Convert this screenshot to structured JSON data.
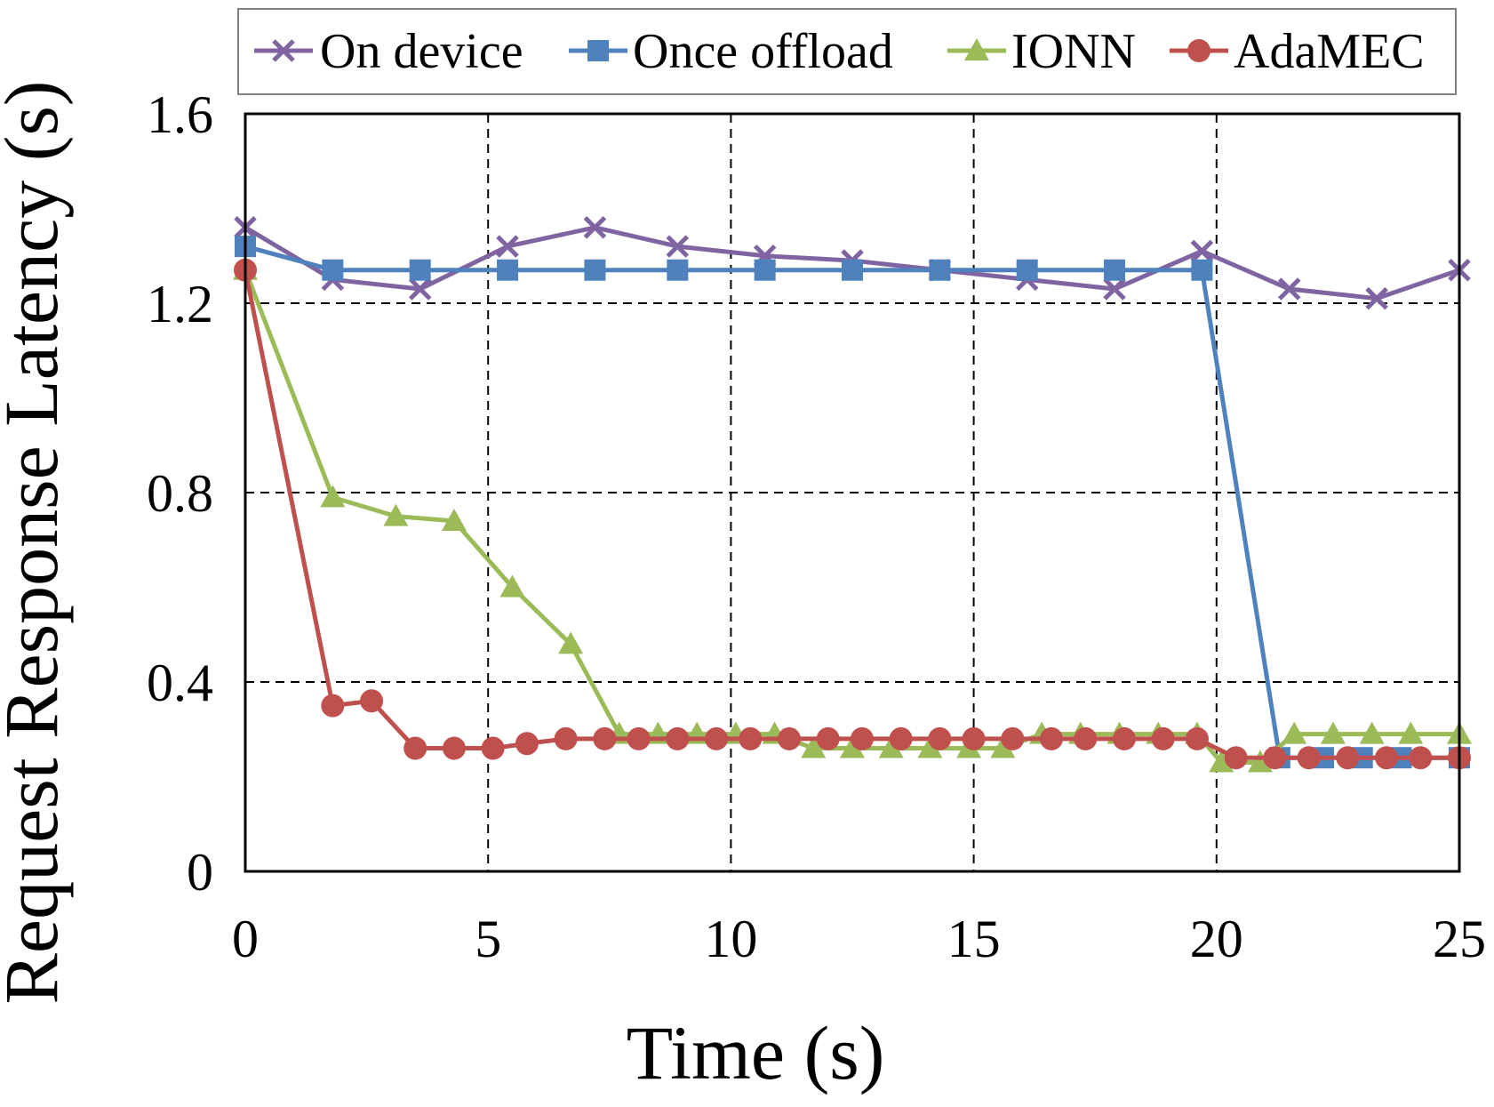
{
  "chart_data": {
    "type": "line",
    "title": "",
    "xlabel": "Time (s)",
    "ylabel": "Request Response Latency (s)",
    "xlim": [
      0,
      25
    ],
    "ylim": [
      0,
      1.6
    ],
    "xticks": [
      0,
      5,
      10,
      15,
      20,
      25
    ],
    "xtick_labels": [
      "0",
      "5",
      "10",
      "15",
      "20",
      "25"
    ],
    "yticks": [
      0,
      0.4,
      0.8,
      1.2,
      1.6
    ],
    "ytick_labels": [
      "0",
      "0.4",
      "0.8",
      "1.2",
      "1.6"
    ],
    "grid": "dashed",
    "legend_position": "top",
    "series": [
      {
        "name": "On device",
        "color": "#8064A2",
        "marker": "x",
        "points": [
          [
            0,
            1.36
          ],
          [
            1.8,
            1.25
          ],
          [
            3.6,
            1.23
          ],
          [
            5.4,
            1.32
          ],
          [
            7.2,
            1.36
          ],
          [
            8.9,
            1.32
          ],
          [
            10.7,
            1.3
          ],
          [
            12.5,
            1.29
          ],
          [
            14.3,
            1.27
          ],
          [
            16.1,
            1.25
          ],
          [
            17.9,
            1.23
          ],
          [
            19.7,
            1.31
          ],
          [
            21.5,
            1.23
          ],
          [
            23.3,
            1.21
          ],
          [
            25,
            1.27
          ]
        ]
      },
      {
        "name": "Once offload",
        "color": "#4F81BD",
        "marker": "square",
        "points": [
          [
            0,
            1.32
          ],
          [
            1.8,
            1.27
          ],
          [
            3.6,
            1.27
          ],
          [
            5.4,
            1.27
          ],
          [
            7.2,
            1.27
          ],
          [
            8.9,
            1.27
          ],
          [
            10.7,
            1.27
          ],
          [
            12.5,
            1.27
          ],
          [
            14.3,
            1.27
          ],
          [
            16.1,
            1.27
          ],
          [
            17.9,
            1.27
          ],
          [
            19.7,
            1.27
          ],
          [
            21.3,
            0.24
          ],
          [
            22.2,
            0.24
          ],
          [
            23.0,
            0.24
          ],
          [
            23.8,
            0.24
          ],
          [
            25,
            0.24
          ]
        ]
      },
      {
        "name": "IONN",
        "color": "#9BBB59",
        "marker": "triangle",
        "points": [
          [
            0,
            1.27
          ],
          [
            1.8,
            0.79
          ],
          [
            3.1,
            0.75
          ],
          [
            4.3,
            0.74
          ],
          [
            5.5,
            0.6
          ],
          [
            6.7,
            0.48
          ],
          [
            7.7,
            0.29
          ],
          [
            8.5,
            0.29
          ],
          [
            9.3,
            0.29
          ],
          [
            10.1,
            0.29
          ],
          [
            10.9,
            0.29
          ],
          [
            11.7,
            0.26
          ],
          [
            12.5,
            0.26
          ],
          [
            13.3,
            0.26
          ],
          [
            14.1,
            0.26
          ],
          [
            14.9,
            0.26
          ],
          [
            15.6,
            0.26
          ],
          [
            16.4,
            0.29
          ],
          [
            17.2,
            0.29
          ],
          [
            18.0,
            0.29
          ],
          [
            18.8,
            0.29
          ],
          [
            19.6,
            0.29
          ],
          [
            20.1,
            0.23
          ],
          [
            20.9,
            0.23
          ],
          [
            21.6,
            0.29
          ],
          [
            22.4,
            0.29
          ],
          [
            23.2,
            0.29
          ],
          [
            24.0,
            0.29
          ],
          [
            25,
            0.29
          ]
        ]
      },
      {
        "name": "AdaMEC",
        "color": "#C0504D",
        "marker": "circle",
        "points": [
          [
            0,
            1.27
          ],
          [
            1.8,
            0.35
          ],
          [
            2.6,
            0.36
          ],
          [
            3.5,
            0.26
          ],
          [
            4.3,
            0.26
          ],
          [
            5.1,
            0.26
          ],
          [
            5.8,
            0.27
          ],
          [
            6.6,
            0.28
          ],
          [
            7.4,
            0.28
          ],
          [
            8.1,
            0.28
          ],
          [
            8.9,
            0.28
          ],
          [
            9.7,
            0.28
          ],
          [
            10.4,
            0.28
          ],
          [
            11.2,
            0.28
          ],
          [
            12.0,
            0.28
          ],
          [
            12.7,
            0.28
          ],
          [
            13.5,
            0.28
          ],
          [
            14.3,
            0.28
          ],
          [
            15.0,
            0.28
          ],
          [
            15.8,
            0.28
          ],
          [
            16.6,
            0.28
          ],
          [
            17.3,
            0.28
          ],
          [
            18.1,
            0.28
          ],
          [
            18.9,
            0.28
          ],
          [
            19.6,
            0.28
          ],
          [
            20.4,
            0.24
          ],
          [
            21.2,
            0.24
          ],
          [
            21.9,
            0.24
          ],
          [
            22.7,
            0.24
          ],
          [
            23.5,
            0.24
          ],
          [
            24.2,
            0.24
          ],
          [
            25,
            0.24
          ]
        ]
      }
    ]
  }
}
